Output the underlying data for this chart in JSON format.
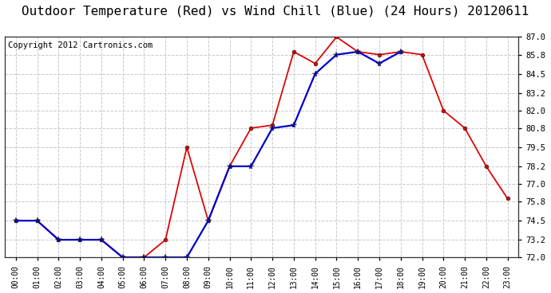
{
  "title": "Outdoor Temperature (Red) vs Wind Chill (Blue) (24 Hours) 20120611",
  "copyright": "Copyright 2012 Cartronics.com",
  "hours": [
    "00:00",
    "01:00",
    "02:00",
    "03:00",
    "04:00",
    "05:00",
    "06:00",
    "07:00",
    "08:00",
    "09:00",
    "10:00",
    "11:00",
    "12:00",
    "13:00",
    "14:00",
    "15:00",
    "16:00",
    "17:00",
    "18:00",
    "19:00",
    "20:00",
    "21:00",
    "22:00",
    "23:00"
  ],
  "temp_red": [
    74.5,
    74.5,
    73.2,
    73.2,
    73.2,
    72.0,
    72.0,
    73.2,
    79.5,
    74.5,
    78.2,
    80.8,
    81.0,
    86.0,
    85.2,
    87.0,
    86.0,
    85.8,
    86.0,
    85.8,
    82.0,
    80.8,
    78.2,
    76.0
  ],
  "wind_chill_blue": [
    74.5,
    74.5,
    73.2,
    73.2,
    73.2,
    72.0,
    72.0,
    72.0,
    72.0,
    74.5,
    78.2,
    78.2,
    80.8,
    81.0,
    84.5,
    85.8,
    86.0,
    85.2,
    86.0,
    null,
    null,
    null,
    null,
    null
  ],
  "ylim_min": 72.0,
  "ylim_max": 87.0,
  "yticks": [
    72.0,
    73.2,
    74.5,
    75.8,
    77.0,
    78.2,
    79.5,
    80.8,
    82.0,
    83.2,
    84.5,
    85.8,
    87.0
  ],
  "bg_color": "#ffffff",
  "grid_color": "#c8c8c8",
  "red_color": "#dd0000",
  "blue_color": "#0000cc",
  "title_fontsize": 10,
  "copyright_fontsize": 6.5,
  "marker_size_red": 3.0,
  "marker_size_blue": 5.0,
  "line_width": 1.1
}
